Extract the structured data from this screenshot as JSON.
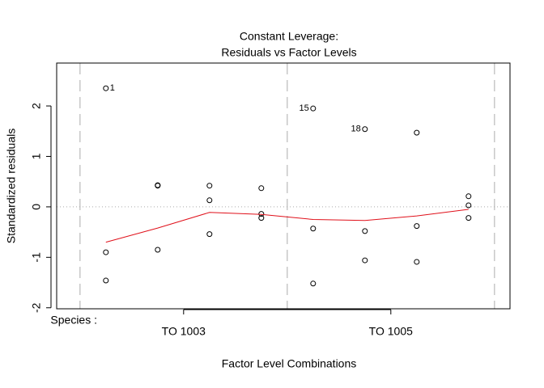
{
  "chart_data": {
    "type": "scatter",
    "title": "Constant Leverage:",
    "subtitle": "Residuals vs Factor Levels",
    "x_label": "Factor Level Combinations",
    "y_label": "Standardized residuals",
    "factor_label": "Species :",
    "xlim": [
      0.05,
      8.8
    ],
    "ylim": [
      -2.02,
      2.85
    ],
    "xticks": [
      {
        "value": 2.5,
        "label": "TO 1003"
      },
      {
        "value": 6.5,
        "label": "TO 1005"
      }
    ],
    "yticks": [
      -2,
      -1,
      0,
      1,
      2
    ],
    "hline": 0,
    "vlines": [
      0.5,
      4.5,
      8.5
    ],
    "series": [
      {
        "type": "scatter",
        "color": "#000000",
        "x": [
          1,
          1,
          1,
          2,
          2,
          2,
          3,
          3,
          3,
          4,
          4,
          4,
          5,
          5,
          5,
          6,
          6,
          6,
          7,
          7,
          7,
          8,
          8,
          8
        ],
        "values": [
          2.35,
          -0.9,
          -1.46,
          0.43,
          0.42,
          -0.85,
          0.42,
          0.13,
          -0.54,
          0.37,
          -0.14,
          -0.22,
          1.95,
          -0.43,
          -1.52,
          1.54,
          -0.48,
          -1.06,
          1.47,
          -0.38,
          -1.09,
          0.21,
          0.03,
          -0.22
        ],
        "labels": [
          "1",
          null,
          null,
          null,
          null,
          null,
          null,
          null,
          null,
          null,
          null,
          null,
          "15",
          null,
          null,
          "18",
          null,
          null,
          null,
          null,
          null,
          null,
          null,
          null
        ]
      },
      {
        "type": "line",
        "color": "#e0101a",
        "x": [
          1,
          2,
          3,
          4,
          5,
          6,
          7,
          8
        ],
        "values": [
          -0.7,
          -0.42,
          -0.11,
          -0.15,
          -0.25,
          -0.27,
          -0.18,
          -0.05
        ]
      }
    ]
  }
}
